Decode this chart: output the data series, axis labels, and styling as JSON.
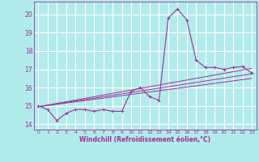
{
  "xlabel": "Windchill (Refroidissement éolien,°C)",
  "bg_color": "#b2ebeb",
  "line_color": "#993399",
  "grid_color": "#ffffff",
  "xlim": [
    -0.5,
    23.5
  ],
  "ylim": [
    13.7,
    20.7
  ],
  "yticks": [
    14,
    15,
    16,
    17,
    18,
    19,
    20
  ],
  "xticks": [
    0,
    1,
    2,
    3,
    4,
    5,
    6,
    7,
    8,
    9,
    10,
    11,
    12,
    13,
    14,
    15,
    16,
    17,
    18,
    19,
    20,
    21,
    22,
    23
  ],
  "hours": [
    0,
    1,
    2,
    3,
    4,
    5,
    6,
    7,
    8,
    9,
    10,
    11,
    12,
    13,
    14,
    15,
    16,
    17,
    18,
    19,
    20,
    21,
    22,
    23
  ],
  "temp": [
    15.0,
    14.8,
    14.2,
    14.6,
    14.8,
    14.8,
    14.7,
    14.8,
    14.7,
    14.7,
    15.8,
    16.0,
    15.5,
    15.3,
    19.8,
    20.3,
    19.7,
    17.5,
    17.1,
    17.1,
    17.0,
    17.1,
    17.15,
    16.8
  ],
  "trend1_x": [
    0,
    23
  ],
  "trend1_y": [
    14.95,
    16.5
  ],
  "trend2_x": [
    0,
    23
  ],
  "trend2_y": [
    14.95,
    16.75
  ],
  "trend3_x": [
    0,
    23
  ],
  "trend3_y": [
    14.95,
    17.05
  ]
}
